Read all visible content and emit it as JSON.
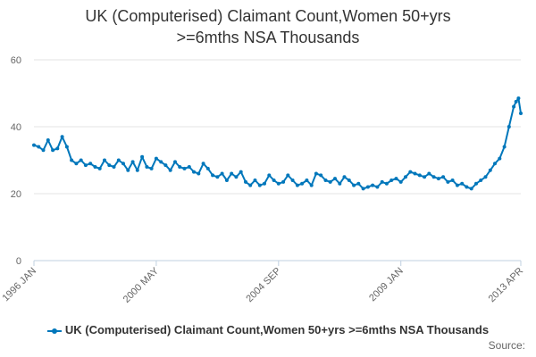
{
  "chart_data": {
    "type": "line",
    "title_lines": [
      "UK (Computerised) Claimant Count,Women 50+yrs",
      ">=6mths NSA Thousands"
    ],
    "xlabel": "",
    "ylabel": "",
    "ylim": [
      0,
      60
    ],
    "y_ticks": [
      0,
      20,
      40,
      60
    ],
    "x_range": [
      "1996-01",
      "2013-04"
    ],
    "x_tick_labels": [
      {
        "date": "1996-01",
        "label": "1996 JAN"
      },
      {
        "date": "2000-05",
        "label": "2000 MAY"
      },
      {
        "date": "2004-09",
        "label": "2004 SEP"
      },
      {
        "date": "2009-01",
        "label": "2009 JAN"
      },
      {
        "date": "2013-04",
        "label": "2013 APR"
      }
    ],
    "grid": "horizontal",
    "legend_position": "bottom",
    "source_label": "Source:",
    "series": [
      {
        "name": "UK (Computerised) Claimant Count,Women 50+yrs >=6mths NSA Thousands",
        "color": "#0077bb",
        "points": [
          [
            "1996-01",
            34.5
          ],
          [
            "1996-03",
            34.0
          ],
          [
            "1996-05",
            33.0
          ],
          [
            "1996-07",
            36.0
          ],
          [
            "1996-09",
            33.0
          ],
          [
            "1996-11",
            33.5
          ],
          [
            "1997-01",
            37.0
          ],
          [
            "1997-03",
            34.0
          ],
          [
            "1997-05",
            30.0
          ],
          [
            "1997-07",
            29.0
          ],
          [
            "1997-09",
            30.0
          ],
          [
            "1997-11",
            28.5
          ],
          [
            "1998-01",
            29.0
          ],
          [
            "1998-03",
            28.0
          ],
          [
            "1998-05",
            27.5
          ],
          [
            "1998-07",
            30.0
          ],
          [
            "1998-09",
            28.5
          ],
          [
            "1998-11",
            28.0
          ],
          [
            "1999-01",
            30.0
          ],
          [
            "1999-03",
            29.0
          ],
          [
            "1999-05",
            27.0
          ],
          [
            "1999-07",
            29.5
          ],
          [
            "1999-09",
            27.0
          ],
          [
            "1999-11",
            31.0
          ],
          [
            "2000-01",
            28.0
          ],
          [
            "2000-03",
            27.5
          ],
          [
            "2000-05",
            30.5
          ],
          [
            "2000-07",
            29.5
          ],
          [
            "2000-09",
            28.5
          ],
          [
            "2000-11",
            27.0
          ],
          [
            "2001-01",
            29.5
          ],
          [
            "2001-03",
            28.0
          ],
          [
            "2001-05",
            27.5
          ],
          [
            "2001-07",
            28.0
          ],
          [
            "2001-09",
            26.5
          ],
          [
            "2001-11",
            26.0
          ],
          [
            "2002-01",
            29.0
          ],
          [
            "2002-03",
            27.5
          ],
          [
            "2002-05",
            25.5
          ],
          [
            "2002-07",
            25.0
          ],
          [
            "2002-09",
            26.0
          ],
          [
            "2002-11",
            24.0
          ],
          [
            "2003-01",
            26.0
          ],
          [
            "2003-03",
            25.0
          ],
          [
            "2003-05",
            26.5
          ],
          [
            "2003-07",
            23.5
          ],
          [
            "2003-09",
            22.5
          ],
          [
            "2003-11",
            24.0
          ],
          [
            "2004-01",
            22.5
          ],
          [
            "2004-03",
            23.0
          ],
          [
            "2004-05",
            25.5
          ],
          [
            "2004-07",
            24.0
          ],
          [
            "2004-09",
            23.0
          ],
          [
            "2004-11",
            23.5
          ],
          [
            "2005-01",
            25.5
          ],
          [
            "2005-03",
            24.0
          ],
          [
            "2005-05",
            22.5
          ],
          [
            "2005-07",
            23.0
          ],
          [
            "2005-09",
            24.0
          ],
          [
            "2005-11",
            22.5
          ],
          [
            "2006-01",
            26.0
          ],
          [
            "2006-03",
            25.5
          ],
          [
            "2006-05",
            24.0
          ],
          [
            "2006-07",
            23.5
          ],
          [
            "2006-09",
            24.5
          ],
          [
            "2006-11",
            23.0
          ],
          [
            "2007-01",
            25.0
          ],
          [
            "2007-03",
            24.0
          ],
          [
            "2007-05",
            22.5
          ],
          [
            "2007-07",
            23.0
          ],
          [
            "2007-09",
            21.5
          ],
          [
            "2007-11",
            22.0
          ],
          [
            "2008-01",
            22.5
          ],
          [
            "2008-03",
            22.0
          ],
          [
            "2008-05",
            23.5
          ],
          [
            "2008-07",
            23.0
          ],
          [
            "2008-09",
            24.0
          ],
          [
            "2008-11",
            24.5
          ],
          [
            "2009-01",
            23.5
          ],
          [
            "2009-03",
            25.0
          ],
          [
            "2009-05",
            26.5
          ],
          [
            "2009-07",
            26.0
          ],
          [
            "2009-09",
            25.5
          ],
          [
            "2009-11",
            25.0
          ],
          [
            "2010-01",
            26.0
          ],
          [
            "2010-03",
            25.0
          ],
          [
            "2010-05",
            24.5
          ],
          [
            "2010-07",
            25.0
          ],
          [
            "2010-09",
            23.5
          ],
          [
            "2010-11",
            24.0
          ],
          [
            "2011-01",
            22.5
          ],
          [
            "2011-03",
            23.0
          ],
          [
            "2011-05",
            22.0
          ],
          [
            "2011-07",
            21.5
          ],
          [
            "2011-09",
            23.0
          ],
          [
            "2011-11",
            24.0
          ],
          [
            "2012-01",
            25.0
          ],
          [
            "2012-03",
            27.0
          ],
          [
            "2012-05",
            29.0
          ],
          [
            "2012-07",
            30.5
          ],
          [
            "2012-09",
            34.0
          ],
          [
            "2012-11",
            40.0
          ],
          [
            "2013-01",
            46.0
          ],
          [
            "2013-02",
            47.5
          ],
          [
            "2013-03",
            48.5
          ],
          [
            "2013-04",
            44.0
          ]
        ]
      }
    ]
  }
}
